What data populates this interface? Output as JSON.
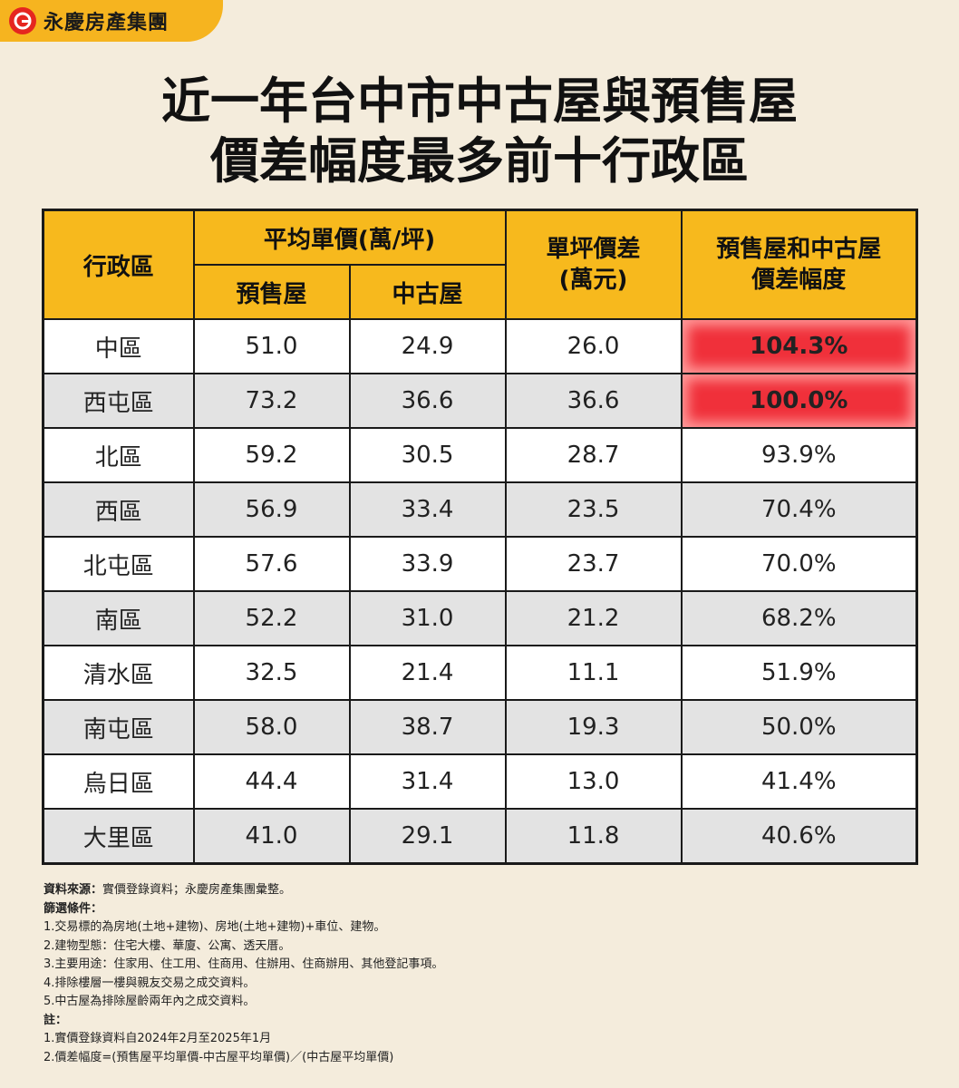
{
  "brand": {
    "name": "永慶房產集團",
    "icon": "company-logo-icon",
    "color": "#f6b41f"
  },
  "title": {
    "line1": "近一年台中市中古屋與預售屋",
    "line2": "價差幅度最多前十行政區"
  },
  "table": {
    "headers": {
      "district": "行政區",
      "avg_price": "平均單價(萬/坪)",
      "presale": "預售屋",
      "used": "中古屋",
      "diff": [
        "單坪價差",
        "(萬元)"
      ],
      "ratio": [
        "預售屋和中古屋",
        "價差幅度"
      ]
    },
    "rows": [
      {
        "district": "中區",
        "presale": "51.0",
        "used": "24.9",
        "diff": "26.0",
        "ratio": "104.3%",
        "highlight": true
      },
      {
        "district": "西屯區",
        "presale": "73.2",
        "used": "36.6",
        "diff": "36.6",
        "ratio": "100.0%",
        "highlight": true
      },
      {
        "district": "北區",
        "presale": "59.2",
        "used": "30.5",
        "diff": "28.7",
        "ratio": "93.9%",
        "highlight": false
      },
      {
        "district": "西區",
        "presale": "56.9",
        "used": "33.4",
        "diff": "23.5",
        "ratio": "70.4%",
        "highlight": false
      },
      {
        "district": "北屯區",
        "presale": "57.6",
        "used": "33.9",
        "diff": "23.7",
        "ratio": "70.0%",
        "highlight": false
      },
      {
        "district": "南區",
        "presale": "52.2",
        "used": "31.0",
        "diff": "21.2",
        "ratio": "68.2%",
        "highlight": false
      },
      {
        "district": "清水區",
        "presale": "32.5",
        "used": "21.4",
        "diff": "11.1",
        "ratio": "51.9%",
        "highlight": false
      },
      {
        "district": "南屯區",
        "presale": "58.0",
        "used": "38.7",
        "diff": "19.3",
        "ratio": "50.0%",
        "highlight": false
      },
      {
        "district": "烏日區",
        "presale": "44.4",
        "used": "31.4",
        "diff": "13.0",
        "ratio": "41.4%",
        "highlight": false
      },
      {
        "district": "大里區",
        "presale": "41.0",
        "used": "29.1",
        "diff": "11.8",
        "ratio": "40.6%",
        "highlight": false
      }
    ],
    "colors": {
      "header": "#f7b91d",
      "highlight": "#f0303a",
      "row_alt": "#e3e3e3"
    }
  },
  "notes": {
    "source_label": "資料來源：",
    "source_text": "實價登錄資料；永慶房產集團彙整。",
    "filter_label": "篩選條件：",
    "filters": [
      "1.交易標的為房地(土地+建物)、房地(土地+建物)+車位、建物。",
      "2.建物型態：住宅大樓、華廈、公寓、透天厝。",
      "3.主要用途：住家用、住工用、住商用、住辦用、住商辦用、其他登記事項。",
      "4.排除樓層一樓與親友交易之成交資料。",
      "5.中古屋為排除屋齡兩年內之成交資料。"
    ],
    "remark_label": "註：",
    "remarks": [
      "1.實價登錄資料自2024年2月至2025年1月",
      "2.價差幅度=(預售屋平均單價-中古屋平均單價)／(中古屋平均單價)"
    ]
  }
}
